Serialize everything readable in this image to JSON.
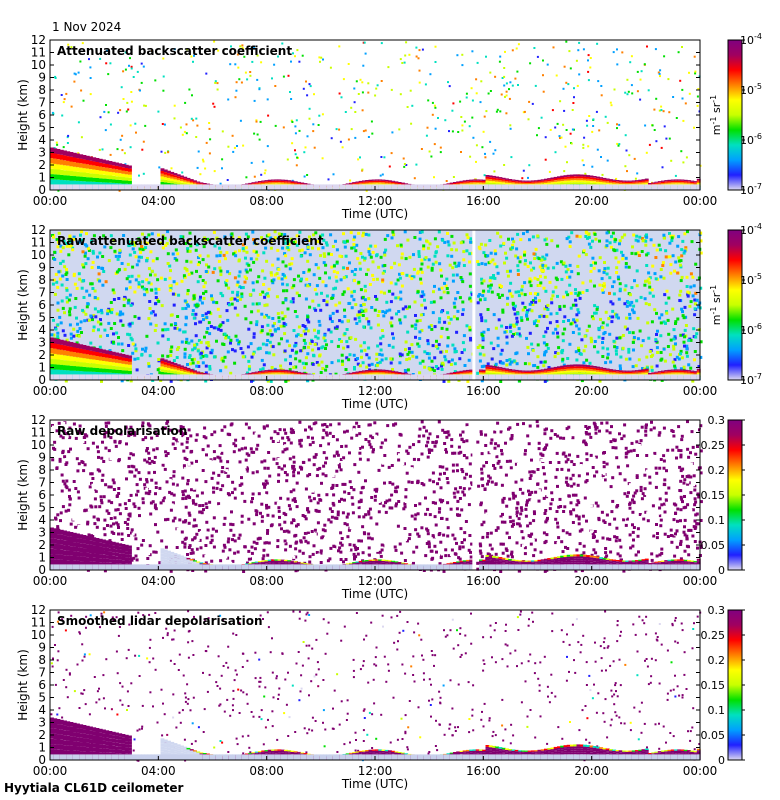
{
  "date_label": "1 Nov 2024",
  "footer_label": "Hyytiala CL61D ceilometer",
  "chart_data": [
    {
      "type": "heatmap",
      "title": "Attenuated backscatter coefficient",
      "xlabel": "Time (UTC)",
      "ylabel": "Height (km)",
      "x_ticks": [
        "00:00",
        "04:00",
        "08:00",
        "12:00",
        "16:00",
        "20:00",
        "00:00"
      ],
      "y_ticks": [
        "0",
        "1",
        "2",
        "3",
        "4",
        "5",
        "6",
        "7",
        "8",
        "9",
        "10",
        "11",
        "12"
      ],
      "ylim": [
        0,
        12
      ],
      "colorbar": {
        "scale": "log",
        "ticks": [
          "10",
          "10",
          "10",
          "10"
        ],
        "exponents": [
          "-7",
          "-6",
          "-5",
          "-4"
        ],
        "unit": "m",
        "unit_exp1": "-1",
        "unit_mid": " sr",
        "unit_exp2": "-1",
        "range": [
          1e-07,
          0.0001
        ]
      },
      "features": {
        "background_noise": "sparse",
        "gap_at_hour": null,
        "cloud_base_km": 0.5
      }
    },
    {
      "type": "heatmap",
      "title": "Raw attenuated backscatter coefficient",
      "xlabel": "Time (UTC)",
      "ylabel": "Height (km)",
      "x_ticks": [
        "00:00",
        "04:00",
        "08:00",
        "12:00",
        "16:00",
        "20:00",
        "00:00"
      ],
      "y_ticks": [
        "0",
        "1",
        "2",
        "3",
        "4",
        "5",
        "6",
        "7",
        "8",
        "9",
        "10",
        "11",
        "12"
      ],
      "ylim": [
        0,
        12
      ],
      "colorbar": {
        "scale": "log",
        "ticks": [
          "10",
          "10",
          "10",
          "10"
        ],
        "exponents": [
          "-7",
          "-6",
          "-5",
          "-4"
        ],
        "unit": "m",
        "unit_exp1": "-1",
        "unit_mid": " sr",
        "unit_exp2": "-1",
        "range": [
          1e-07,
          0.0001
        ]
      },
      "features": {
        "background_noise": "dense",
        "gap_at_hour": 15.65,
        "cloud_base_km": 0.5
      }
    },
    {
      "type": "heatmap",
      "title": "Raw depolarisation",
      "xlabel": "Time (UTC)",
      "ylabel": "Height (km)",
      "x_ticks": [
        "00:00",
        "04:00",
        "08:00",
        "12:00",
        "16:00",
        "20:00",
        "00:00"
      ],
      "y_ticks": [
        "0",
        "1",
        "2",
        "3",
        "4",
        "5",
        "6",
        "7",
        "8",
        "9",
        "10",
        "11",
        "12"
      ],
      "ylim": [
        0,
        12
      ],
      "colorbar": {
        "scale": "linear",
        "ticks": [
          "0",
          "0.05",
          "0.1",
          "0.15",
          "0.2",
          "0.25",
          "0.3"
        ],
        "range": [
          0,
          0.3
        ]
      },
      "features": {
        "background_noise": "dense",
        "gap_at_hour": 15.65,
        "cloud_base_km": 0.5
      }
    },
    {
      "type": "heatmap",
      "title": "Smoothed lidar depolarisation",
      "xlabel": "Time (UTC)",
      "ylabel": "Height (km)",
      "x_ticks": [
        "00:00",
        "04:00",
        "08:00",
        "12:00",
        "16:00",
        "20:00",
        "00:00"
      ],
      "y_ticks": [
        "0",
        "1",
        "2",
        "3",
        "4",
        "5",
        "6",
        "7",
        "8",
        "9",
        "10",
        "11",
        "12"
      ],
      "ylim": [
        0,
        12
      ],
      "colorbar": {
        "scale": "linear",
        "ticks": [
          "0",
          "0.05",
          "0.1",
          "0.15",
          "0.2",
          "0.25",
          "0.3"
        ],
        "range": [
          0,
          0.3
        ]
      },
      "features": {
        "background_noise": "sparse",
        "gap_at_hour": null,
        "cloud_base_km": 0.5
      }
    }
  ],
  "colors": {
    "ramp": [
      "#dcd8f0",
      "#2020ff",
      "#00a0ff",
      "#00e0c0",
      "#00e000",
      "#c8ff00",
      "#ffff00",
      "#ff8000",
      "#ff0000",
      "#a00060",
      "#800080"
    ],
    "noise_gray": "#d8d8d8",
    "purple": "#800070"
  }
}
